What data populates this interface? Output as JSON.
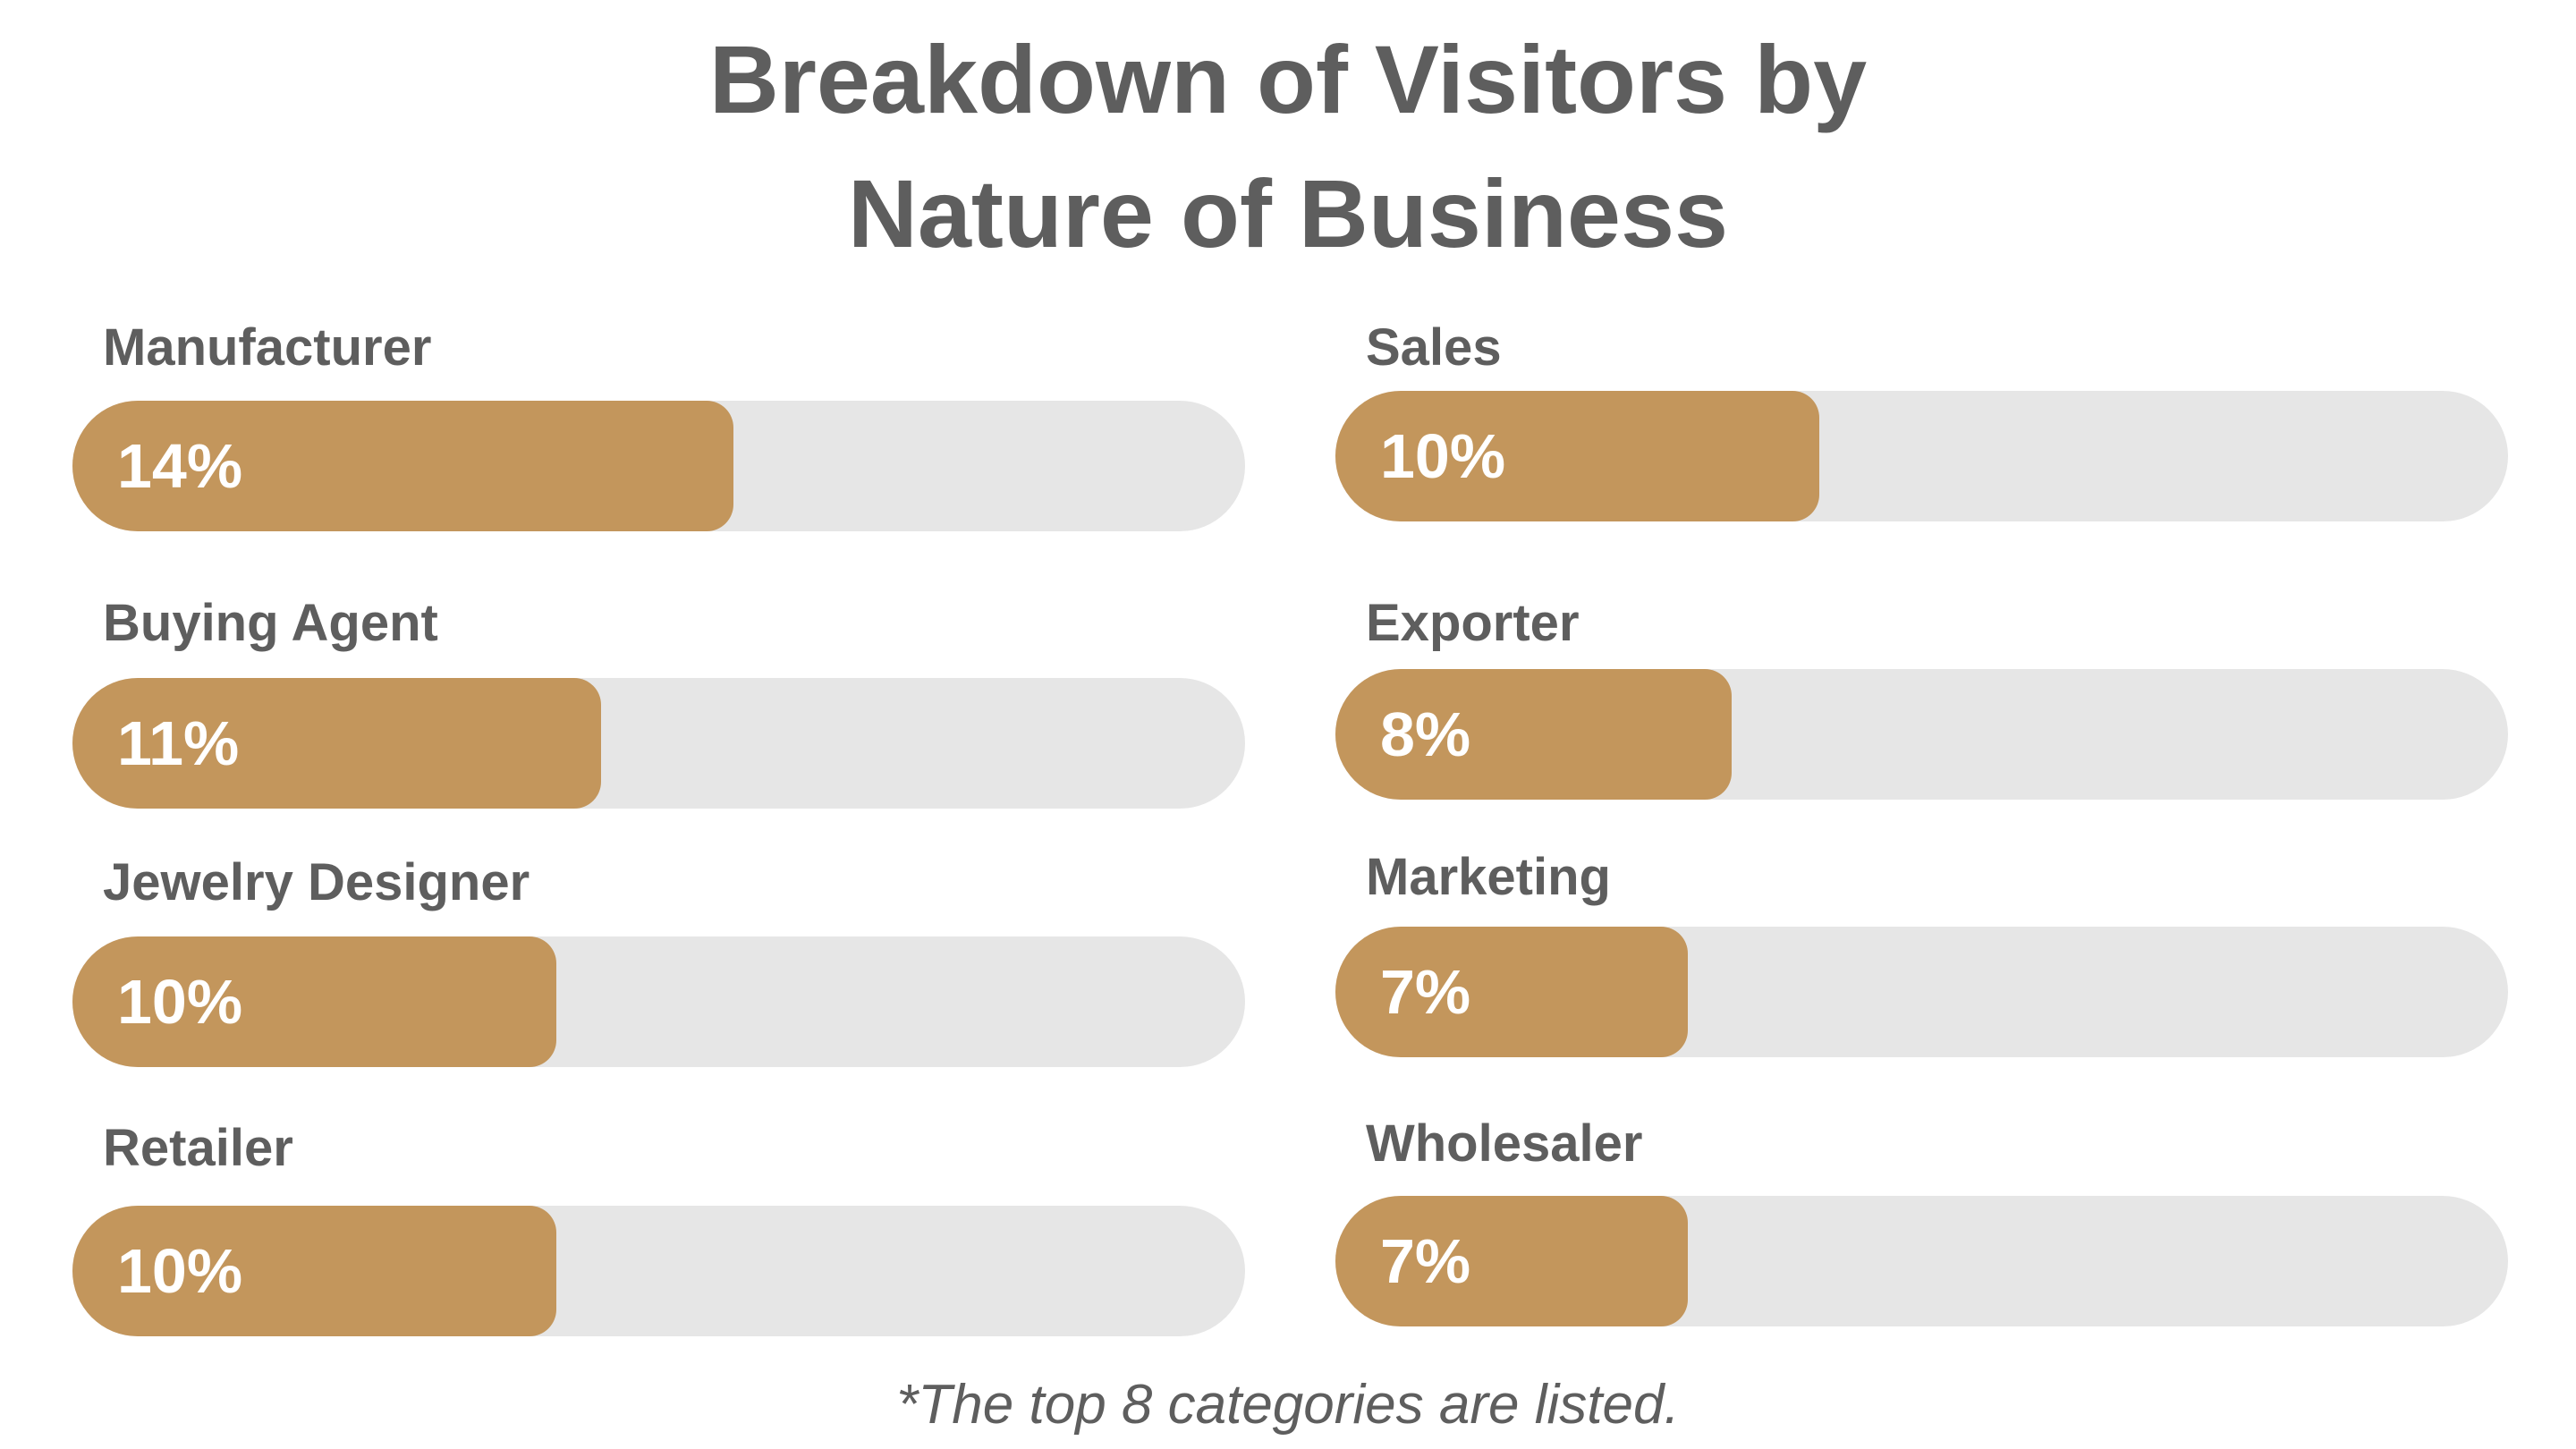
{
  "chart_data": {
    "type": "bar",
    "orientation": "horizontal-progress",
    "title": "Breakdown of Visitors by Nature of Business",
    "title_lines": [
      "Breakdown of Visitors by",
      "Nature of Business"
    ],
    "categories": [
      "Manufacturer",
      "Buying Agent",
      "Jewelry Designer",
      "Retailer",
      "Sales",
      "Exporter",
      "Marketing",
      "Wholesaler"
    ],
    "values": [
      14,
      11,
      10,
      10,
      10,
      8,
      7,
      7
    ],
    "value_labels": [
      "14%",
      "11%",
      "10%",
      "10%",
      "10%",
      "8%",
      "7%",
      "7%"
    ],
    "unit": "%",
    "footnote": "*The top 8 categories are listed.",
    "colors": {
      "fill": "#c3965c",
      "track": "#e6e6e6",
      "text": "#5e5e5e"
    }
  }
}
